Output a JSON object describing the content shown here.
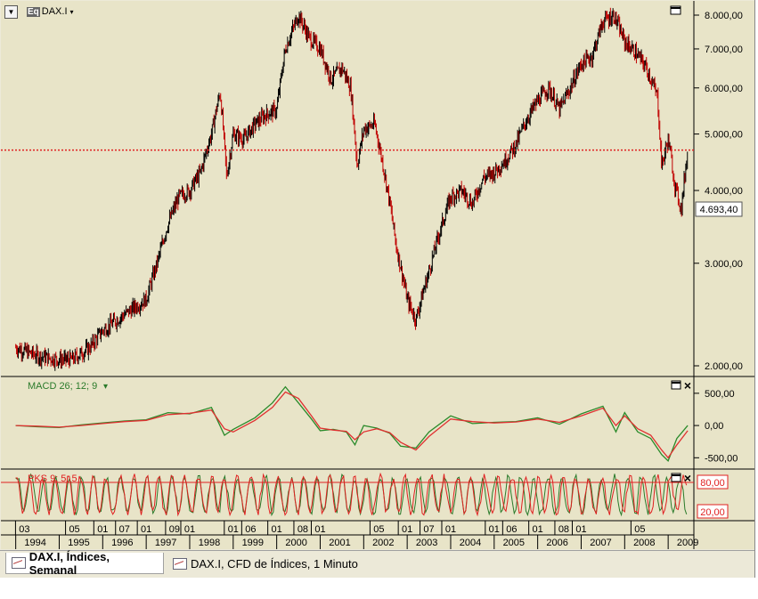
{
  "symbol": {
    "badge": "Eq",
    "name": "DAX.I",
    "caret": "▾",
    "dropdown": "▼"
  },
  "current_price": "4.693,40",
  "panels": {
    "price": {
      "maximize_icon": "maximize-icon"
    },
    "macd": {
      "label": "MACD 26; 12; 9",
      "caret": "▾",
      "close_icon": "×"
    },
    "pks": {
      "label": "PKS 9; 5; 5",
      "close_icon": "×",
      "upper_level": "80,00",
      "lower_level": "20,00"
    }
  },
  "tabs": [
    {
      "label": "DAX.I, Índices, Semanal",
      "active": true
    },
    {
      "label": "DAX.I, CFD de Índices, 1 Minuto",
      "active": false
    }
  ],
  "colors": {
    "background": "#e8e4c8",
    "up": "#000000",
    "down": "#c00000",
    "macd": "#2a8a2a",
    "signal": "#e03030",
    "price_line": "#e02020"
  },
  "chart_data": [
    {
      "type": "candlestick",
      "title": "",
      "scale": "log",
      "y_ticks": [
        "8.000,00",
        "7.000,00",
        "6.000,00",
        "5.000,00",
        "4.000,00",
        "3.000,00",
        "2.000,00"
      ],
      "y_tick_values": [
        8000,
        7000,
        6000,
        5000,
        4000,
        3000,
        2000
      ],
      "reference_line": 4693.4,
      "x_month_labels": [
        "03",
        "05",
        "01",
        "07",
        "01",
        "09",
        "01",
        "01",
        "06",
        "01",
        "08",
        "01",
        "05",
        "01",
        "07",
        "01",
        "01",
        "06",
        "01",
        "08",
        "01",
        "05"
      ],
      "x_year_labels": [
        "1994",
        "1995",
        "1996",
        "1997",
        "1998",
        "1999",
        "2000",
        "2001",
        "2002",
        "2003",
        "2004",
        "2005",
        "2006",
        "2007",
        "2008",
        "2009"
      ],
      "x": [
        1994.0,
        1994.5,
        1995.0,
        1995.3,
        1995.7,
        1996.0,
        1996.5,
        1997.0,
        1997.25,
        1997.5,
        1997.75,
        1998.0,
        1998.25,
        1998.5,
        1998.7,
        1998.85,
        1999.0,
        1999.25,
        1999.5,
        1999.75,
        2000.0,
        2000.2,
        2000.5,
        2000.75,
        2001.0,
        2001.25,
        2001.5,
        2001.7,
        2001.85,
        2002.0,
        2002.25,
        2002.5,
        2002.75,
        2003.0,
        2003.2,
        2003.5,
        2003.75,
        2004.0,
        2004.25,
        2004.5,
        2004.75,
        2005.0,
        2005.25,
        2005.5,
        2005.75,
        2006.0,
        2006.25,
        2006.5,
        2006.75,
        2007.0,
        2007.25,
        2007.5,
        2007.75,
        2008.0,
        2008.25,
        2008.5,
        2008.75,
        2008.85,
        2009.0,
        2009.15,
        2009.3,
        2009.45
      ],
      "close": [
        2150,
        2080,
        2050,
        2050,
        2150,
        2300,
        2450,
        2600,
        3000,
        3500,
        3900,
        4000,
        4300,
        5000,
        5900,
        4200,
        5000,
        4900,
        5200,
        5400,
        5500,
        7000,
        8000,
        7300,
        7000,
        6200,
        6500,
        6000,
        4400,
        5100,
        5200,
        4200,
        3200,
        2600,
        2400,
        2900,
        3400,
        3900,
        4000,
        3800,
        4200,
        4300,
        4500,
        4800,
        5300,
        5700,
        6000,
        5500,
        6000,
        6600,
        6800,
        7800,
        8000,
        7200,
        6900,
        6500,
        5800,
        4400,
        4900,
        4100,
        3700,
        4693
      ]
    },
    {
      "type": "line",
      "title": "MACD 26; 12; 9",
      "y_ticks": [
        "500,00",
        "0,00",
        "-500,00"
      ],
      "y_tick_values": [
        500,
        0,
        -500
      ],
      "x": [
        1994.0,
        1994.5,
        1995.0,
        1995.5,
        1996.0,
        1996.5,
        1997.0,
        1997.5,
        1998.0,
        1998.5,
        1998.8,
        1999.0,
        1999.5,
        1999.9,
        2000.2,
        2000.5,
        2000.8,
        2001.0,
        2001.3,
        2001.6,
        2001.8,
        2002.0,
        2002.3,
        2002.6,
        2002.85,
        2003.2,
        2003.5,
        2004.0,
        2004.5,
        2005.0,
        2005.5,
        2006.0,
        2006.5,
        2007.0,
        2007.5,
        2007.8,
        2008.0,
        2008.3,
        2008.6,
        2008.85,
        2009.0,
        2009.2,
        2009.45
      ],
      "series": [
        {
          "values": [
            0,
            -20,
            -30,
            10,
            40,
            70,
            90,
            200,
            180,
            280,
            -150,
            -60,
            120,
            350,
            600,
            350,
            100,
            -80,
            -60,
            -100,
            -300,
            0,
            -40,
            -120,
            -320,
            -350,
            -100,
            150,
            30,
            50,
            60,
            120,
            20,
            180,
            300,
            -100,
            200,
            -100,
            -200,
            -450,
            -550,
            -200,
            0
          ]
        },
        {
          "values": [
            0,
            -10,
            -25,
            0,
            30,
            60,
            80,
            170,
            190,
            240,
            -50,
            -100,
            80,
            280,
            520,
            420,
            150,
            -40,
            -70,
            -90,
            -220,
            -100,
            -50,
            -110,
            -260,
            -380,
            -170,
            100,
            60,
            40,
            55,
            100,
            50,
            150,
            270,
            0,
            150,
            -50,
            -150,
            -380,
            -500,
            -300,
            -80
          ]
        }
      ]
    },
    {
      "type": "line",
      "title": "PKS 9; 5; 5",
      "y_ticks": [
        "80,00",
        "20,00"
      ],
      "y_tick_values": [
        80,
        20
      ],
      "reference_lines": [
        80,
        20
      ]
    }
  ]
}
